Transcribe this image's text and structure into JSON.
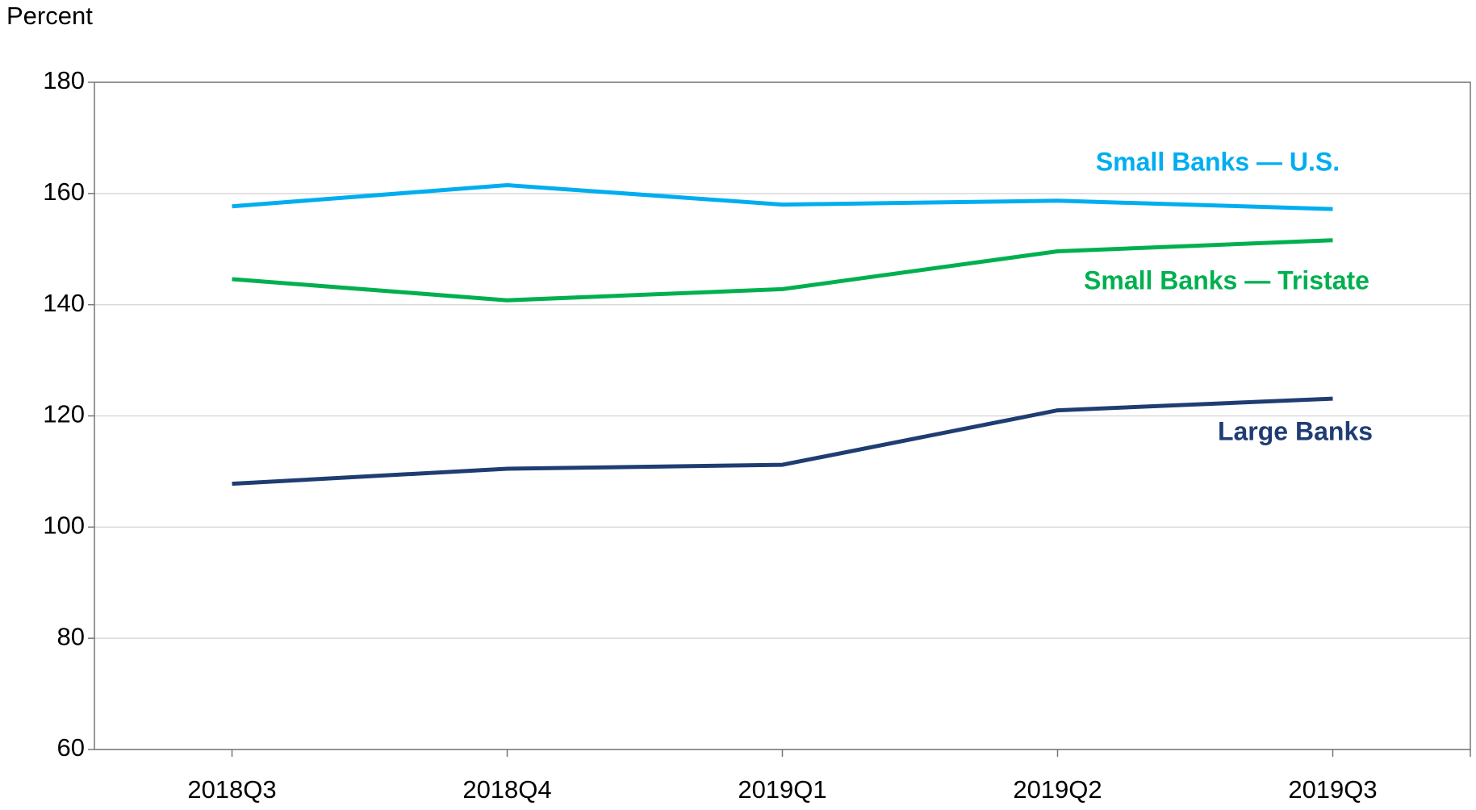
{
  "chart_data": {
    "type": "line",
    "y_axis_label": "Percent",
    "categories": [
      "2018Q3",
      "2018Q4",
      "2019Q1",
      "2019Q2",
      "2019Q3"
    ],
    "series": [
      {
        "name": "Small Banks — U.S.",
        "color": "#00aeef",
        "values": [
          157.7,
          161.5,
          158.0,
          158.7,
          157.2
        ]
      },
      {
        "name": "Small Banks — Tristate",
        "color": "#00b050",
        "values": [
          144.6,
          140.8,
          142.8,
          149.6,
          151.6
        ]
      },
      {
        "name": "Large Banks",
        "color": "#1f3d73",
        "values": [
          107.8,
          110.5,
          111.2,
          121.0,
          123.1
        ]
      }
    ],
    "ylim": [
      60,
      180
    ],
    "yticks": [
      60,
      80,
      100,
      120,
      140,
      160,
      180
    ],
    "grid": true
  }
}
